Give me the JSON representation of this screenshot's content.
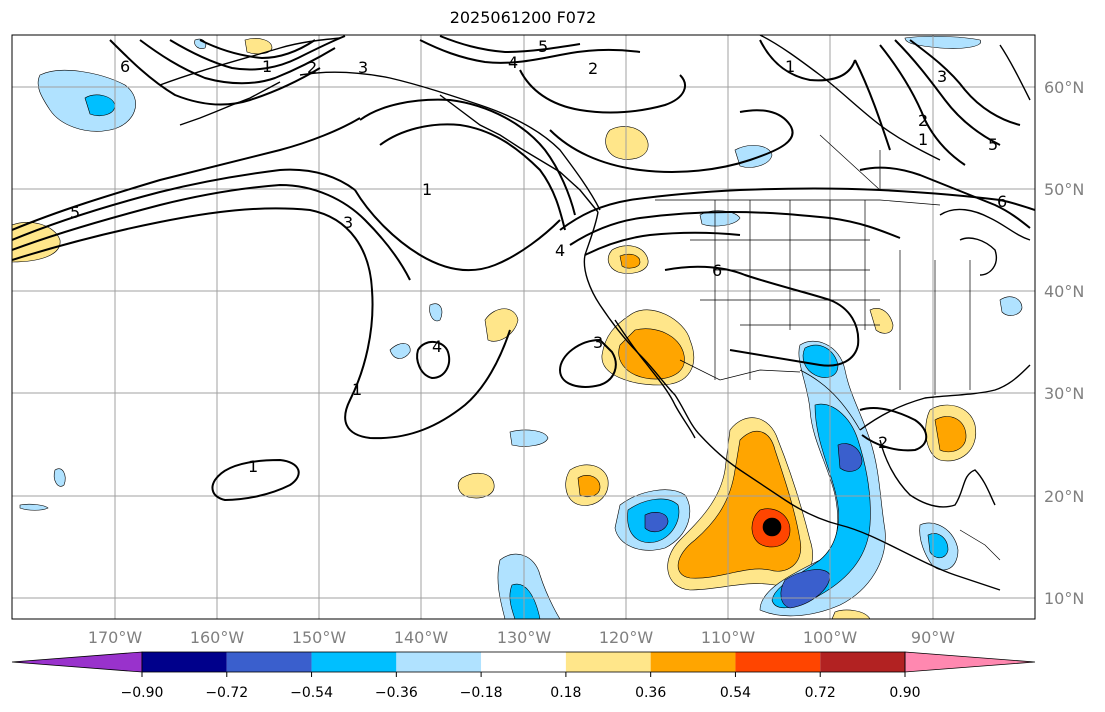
{
  "title": "2025061200 F072",
  "lon_labels": [
    "170°W",
    "160°W",
    "150°W",
    "140°W",
    "130°W",
    "120°W",
    "110°W",
    "100°W",
    "90°W"
  ],
  "lat_labels": [
    "60°N",
    "50°N",
    "40°N",
    "30°N",
    "20°N",
    "10°N"
  ],
  "colorbar": {
    "ticks": [
      "−0.90",
      "−0.72",
      "−0.54",
      "−0.36",
      "−0.18",
      "0.18",
      "0.36",
      "0.54",
      "0.72",
      "0.90"
    ],
    "colors": [
      "#9932cc",
      "#00008b",
      "#3a5fcd",
      "#00bfff",
      "#b0e2ff",
      "#ffffff",
      "#ffe68a",
      "#ffa500",
      "#ff4500",
      "#b22222",
      "#ff88b0"
    ]
  },
  "contour_labels": [
    "1",
    "2",
    "3",
    "4",
    "5",
    "6",
    "1",
    "2",
    "3",
    "5",
    "4",
    "6",
    "3",
    "4",
    "1",
    "1",
    "2",
    "1",
    "1",
    "5",
    "3",
    "6",
    "2",
    "1"
  ],
  "colors": {
    "grid": "#a0a0a0",
    "axis_text": "#808080",
    "contour": "#000000",
    "coast": "#000000"
  }
}
